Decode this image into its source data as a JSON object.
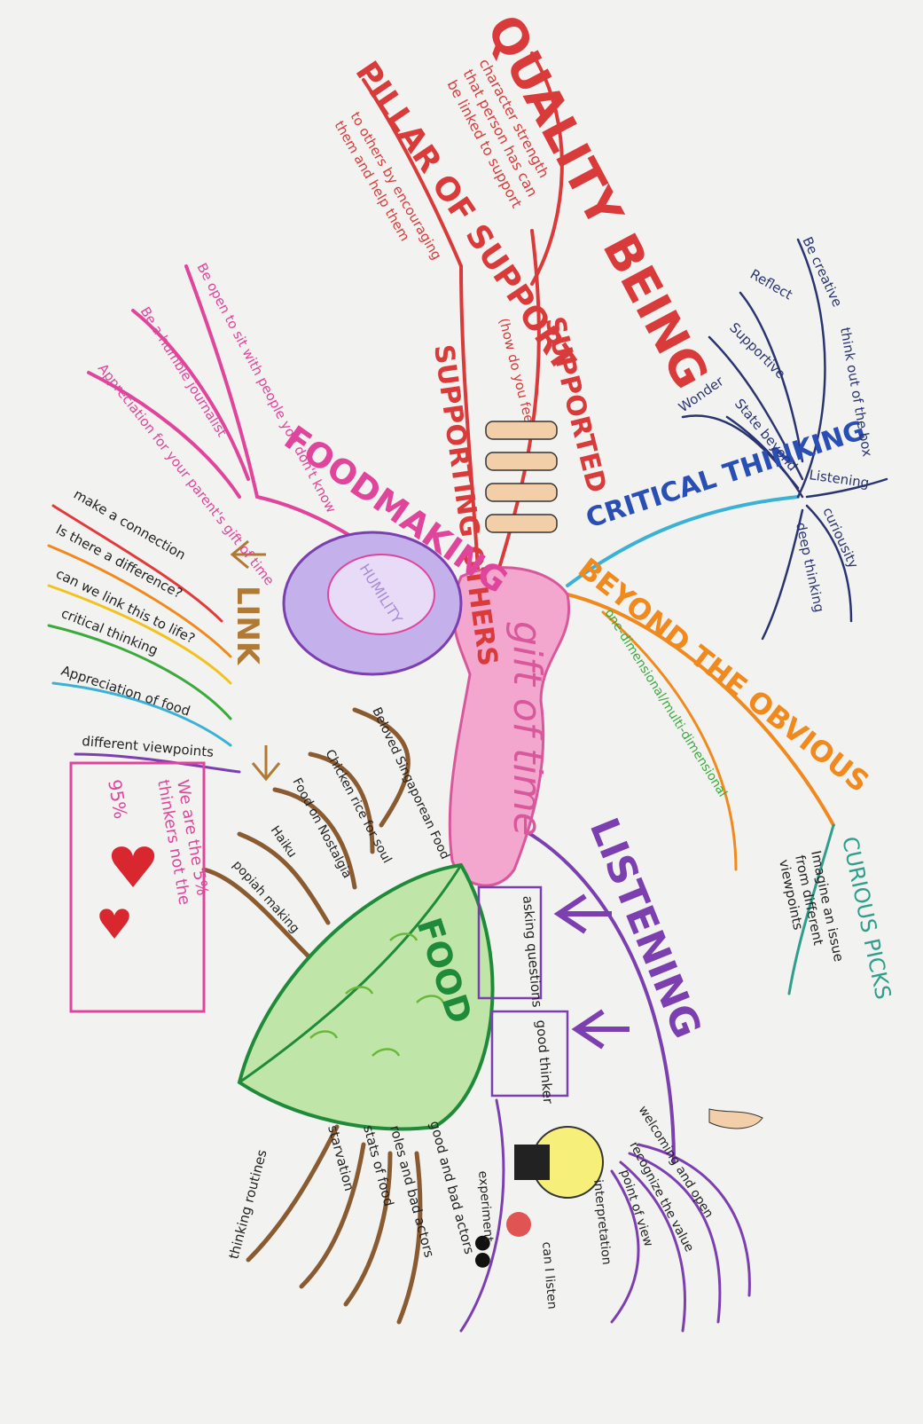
{
  "center": {
    "label": "gift of time",
    "color": "#d9579b"
  },
  "branches": {
    "quality_being": {
      "title": "QUALITY BEING",
      "note_lines": [
        "character strength",
        "that person has can",
        "be linked to support"
      ],
      "color": "#d93a3a"
    },
    "supported": {
      "title": "SUPPORTED",
      "note": "(how do you feel?)",
      "color": "#d93a3a"
    },
    "pillar_of_support": {
      "title": "PILLAR OF SUPPORT",
      "note_lines": [
        "to others by encouraging",
        "them and help them"
      ],
      "color": "#d93a3a"
    },
    "supporting_others": {
      "title": "SUPPORTING OTHERS",
      "color": "#d93a3a"
    },
    "foodmaking": {
      "title": "FOODMAKING",
      "sub": "HUMILITY",
      "color": "#e0459c",
      "sub_color": "#a98bd6"
    },
    "pink_leaves": [
      "Be open to sit with people you don't know",
      "Be a humble journalist",
      "Appreciation for your parent's gift of time"
    ],
    "critical_thinking": {
      "title": "CRITICAL THINKING",
      "color": "#2a4fb4"
    },
    "navy_leaves": [
      "Be creative",
      "think out of the box",
      "Reflect",
      "Supportive",
      "Wonder",
      "State beyond",
      "Listening",
      "curiousity",
      "deep thinking"
    ],
    "beyond_obvious": {
      "title": "BEYOND THE OBVIOUS",
      "note": "one-dimensional/multi-dimensional",
      "color": "#f08a1e"
    },
    "curious_picks": {
      "title": "CURIOUS PICKS",
      "note_lines": [
        "Imagine an issue",
        "from different",
        "viewpoints"
      ],
      "color": "#2f9e8c"
    },
    "link": {
      "title": "LINK",
      "color": "#b07a34",
      "items": [
        {
          "label": "make a connection",
          "color": "#e23a3a"
        },
        {
          "label": "Is there a difference?",
          "color": "#f08a1e"
        },
        {
          "label": "can we link this to life?",
          "color": "#f2c21e"
        },
        {
          "label": "critical thinking",
          "color": "#3ba93b"
        },
        {
          "label": "Appreciation of food",
          "color": "#3bb1d6"
        },
        {
          "label": "different viewpoints",
          "color": "#7b3fb0"
        }
      ]
    },
    "note_box": {
      "lines": [
        "We are the 5%",
        "thinkers not the",
        "95%"
      ],
      "color": "#e0459c",
      "heart_color": "#d8272e"
    },
    "food": {
      "title": "FOOD",
      "color": "#1f8a3a",
      "fill": "#bfe6a8",
      "brown_items": [
        "Beloved Singaporean Food",
        "Chicken rice for soul",
        "Food on Nostalgia",
        "Haiku",
        "popiah making"
      ],
      "bottom_items": [
        "thinking routines",
        "starvation",
        "stats of food",
        "roles and bad actors",
        "good and bad actors"
      ]
    },
    "listening": {
      "title": "LISTENING",
      "color": "#7b3fb0",
      "boxes": [
        "asking questions",
        "good thinker"
      ],
      "items": [
        "welcoming and open",
        "recognize the value",
        "point of view",
        "interpretation",
        "experiment",
        "can I listen"
      ]
    }
  }
}
